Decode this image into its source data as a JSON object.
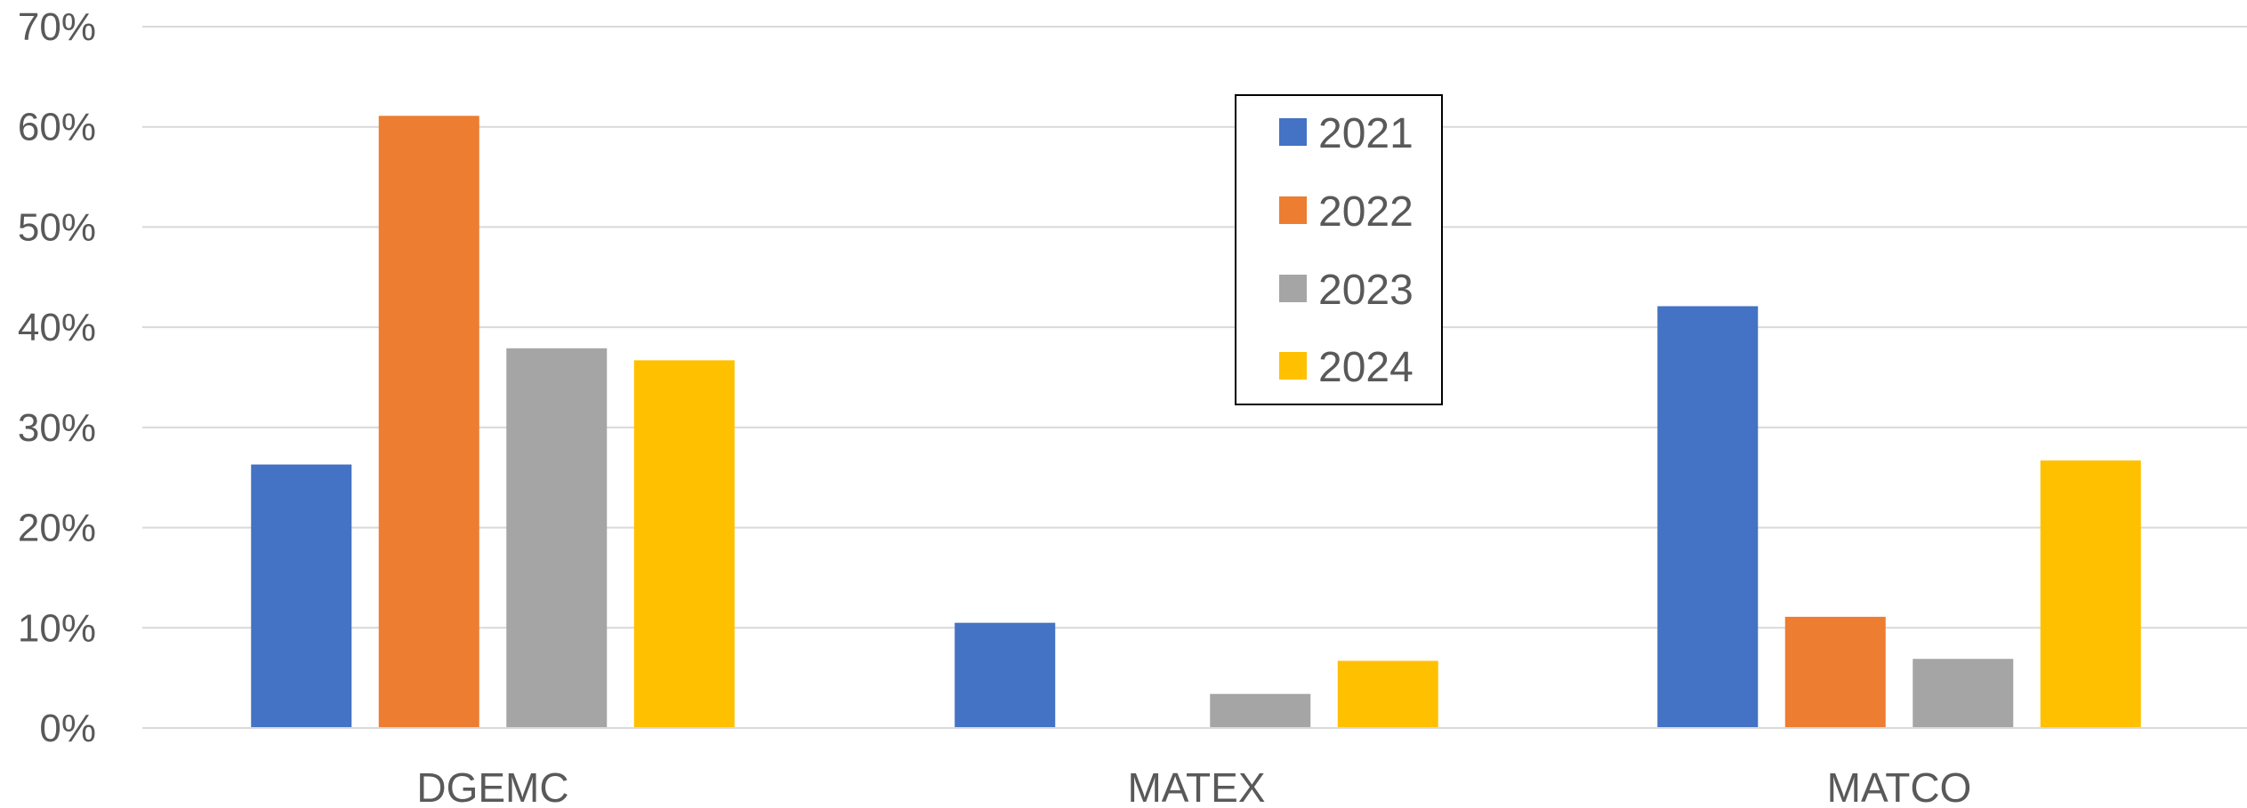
{
  "chart_data": {
    "type": "bar",
    "categories": [
      "DGEMC",
      "MATEX",
      "MATCO"
    ],
    "series": [
      {
        "name": "2021",
        "color": "#4472C4",
        "values": [
          26.3,
          10.5,
          42.1
        ]
      },
      {
        "name": "2022",
        "color": "#ED7D31",
        "values": [
          61.1,
          0,
          11.1
        ]
      },
      {
        "name": "2023",
        "color": "#A5A5A5",
        "values": [
          37.9,
          3.4,
          6.9
        ]
      },
      {
        "name": "2024",
        "color": "#FFC000",
        "values": [
          36.7,
          6.7,
          26.7
        ]
      }
    ],
    "ylim": [
      0,
      70
    ],
    "yticks": [
      "0%",
      "10%",
      "20%",
      "30%",
      "40%",
      "50%",
      "60%",
      "70%"
    ],
    "ytick_values": [
      0,
      10,
      20,
      30,
      40,
      50,
      60,
      70
    ],
    "grid": true,
    "legend_position": "top-center"
  }
}
